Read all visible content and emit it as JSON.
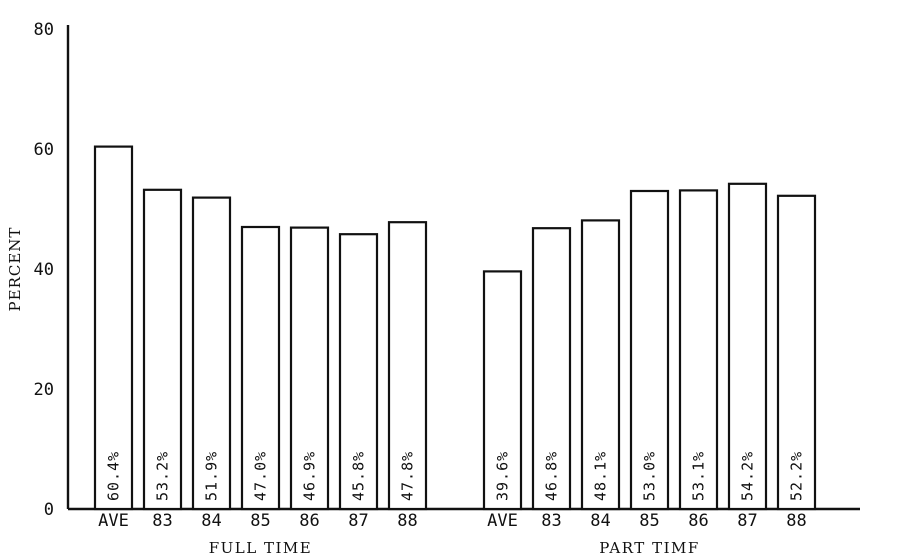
{
  "chart_data": {
    "type": "bar",
    "ylabel": "PERCENT",
    "ylim": [
      0,
      80
    ],
    "yticks": [
      "0",
      "20",
      "40",
      "60",
      "80"
    ],
    "groups": [
      {
        "name": "FULL TIME",
        "categories": [
          "AVE",
          "83",
          "84",
          "85",
          "86",
          "87",
          "88"
        ],
        "values": [
          60.4,
          53.2,
          51.9,
          47.0,
          46.9,
          45.8,
          47.8
        ],
        "value_labels": [
          "60.4%",
          "53.2%",
          "51.9%",
          "47.0%",
          "46.9%",
          "45.8%",
          "47.8%"
        ]
      },
      {
        "name": "PART TIMF",
        "categories": [
          "AVE",
          "83",
          "84",
          "85",
          "86",
          "87",
          "88"
        ],
        "values": [
          39.6,
          46.8,
          48.1,
          53.0,
          53.1,
          54.2,
          52.2
        ],
        "value_labels": [
          "39.6%",
          "46.8%",
          "48.1%",
          "53.0%",
          "53.1%",
          "54.2%",
          "52.2%"
        ]
      }
    ]
  }
}
